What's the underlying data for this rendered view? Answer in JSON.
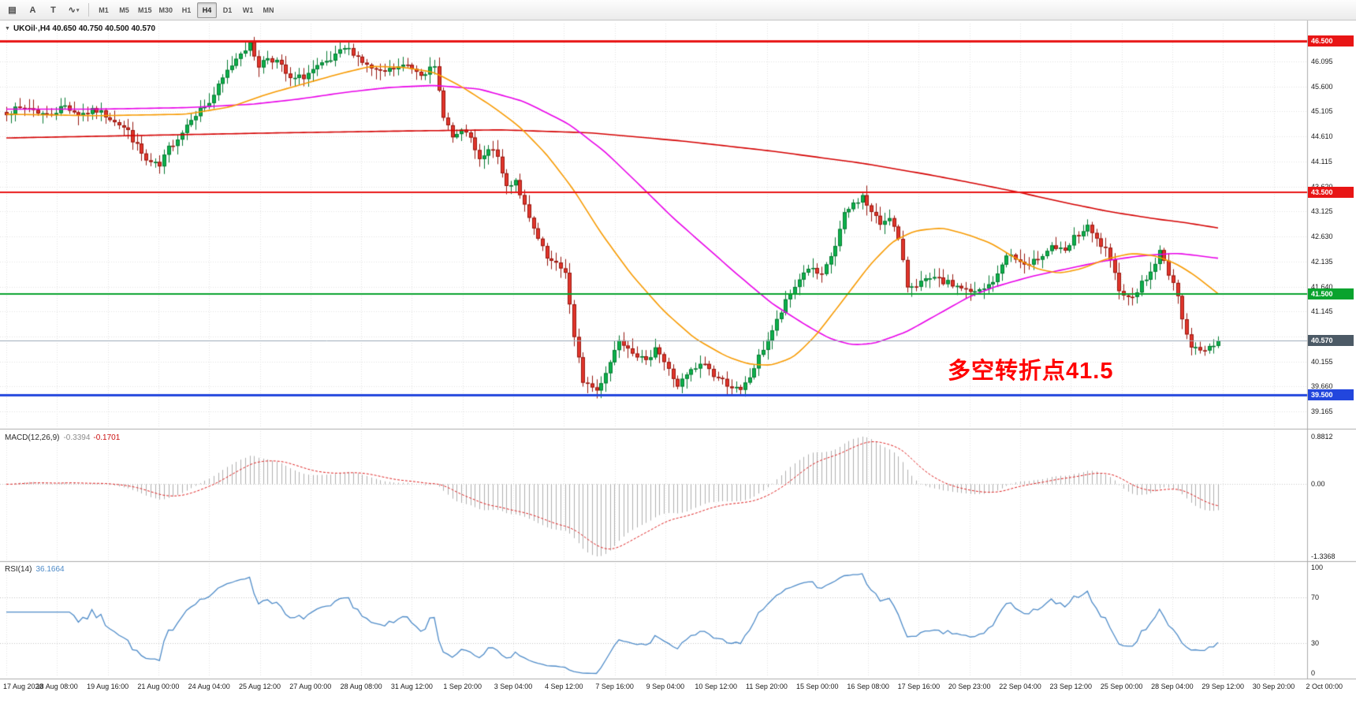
{
  "toolbar": {
    "tools": [
      {
        "name": "charts",
        "glyph": "▤"
      },
      {
        "name": "cursor",
        "glyph": "A"
      },
      {
        "name": "text",
        "glyph": "T"
      },
      {
        "name": "line-studies",
        "glyph": "∿"
      }
    ],
    "timeframes": [
      {
        "label": "M1",
        "active": false
      },
      {
        "label": "M5",
        "active": false
      },
      {
        "label": "M15",
        "active": false
      },
      {
        "label": "M30",
        "active": false
      },
      {
        "label": "H1",
        "active": false
      },
      {
        "label": "H4",
        "active": true
      },
      {
        "label": "D1",
        "active": false
      },
      {
        "label": "W1",
        "active": false
      },
      {
        "label": "MN",
        "active": false
      }
    ]
  },
  "chart_data": {
    "type": "candlestick",
    "symbol": "UKOil",
    "timeframe": "H4",
    "title_line": "UKOil·,H4  40.650 40.750 40.500 40.570",
    "ohlc_display": {
      "open": "40.650",
      "high": "40.750",
      "low": "40.500",
      "close": "40.570"
    },
    "price_axis": {
      "ticks": [
        46.095,
        45.6,
        45.105,
        44.61,
        44.115,
        43.62,
        43.125,
        42.63,
        42.135,
        41.64,
        41.145,
        40.65,
        40.155,
        39.66,
        39.165
      ],
      "levels": [
        {
          "price": 46.5,
          "label": "46.500",
          "color": "#e81515",
          "width": 3
        },
        {
          "price": 43.5,
          "label": "43.500",
          "color": "#e81515",
          "width": 2
        },
        {
          "price": 41.5,
          "label": "41.500",
          "color": "#0aa32e",
          "width": 2
        },
        {
          "price": 39.5,
          "label": "39.500",
          "color": "#2246dd",
          "width": 3
        }
      ],
      "current": {
        "price": 40.57,
        "label": "40.570",
        "line_color": "#9aa8b6",
        "tag_color": "#4c5a66"
      }
    },
    "time_axis": {
      "labels": [
        "17 Aug 2020",
        "18 Aug 08:00",
        "19 Aug 16:00",
        "21 Aug 00:00",
        "24 Aug 04:00",
        "25 Aug 12:00",
        "27 Aug 00:00",
        "28 Aug 08:00",
        "31 Aug 12:00",
        "1 Sep 20:00",
        "3 Sep 04:00",
        "4 Sep 12:00",
        "7 Sep 16:00",
        "9 Sep 04:00",
        "10 Sep 12:00",
        "11 Sep 20:00",
        "15 Sep 00:00",
        "16 Sep 08:00",
        "17 Sep 16:00",
        "20 Sep 23:00",
        "22 Sep 04:00",
        "23 Sep 12:00",
        "25 Sep 00:00",
        "28 Sep 04:00",
        "29 Sep 12:00",
        "30 Sep 20:00",
        "2 Oct 00:00"
      ]
    },
    "candles": {
      "count": 270,
      "up_color": "#0cb14b",
      "up_border": "#067a32",
      "down_color": "#e2352b",
      "down_border": "#96170f",
      "close_path": [
        [
          0,
          45.1
        ],
        [
          5,
          45.18
        ],
        [
          9,
          45.02
        ],
        [
          13,
          45.22
        ],
        [
          16,
          45.05
        ],
        [
          20,
          45.12
        ],
        [
          24,
          44.94
        ],
        [
          27,
          44.7
        ],
        [
          31,
          44.12
        ],
        [
          34,
          44.0
        ],
        [
          36,
          44.38
        ],
        [
          39,
          44.7
        ],
        [
          41,
          45.0
        ],
        [
          45,
          45.28
        ],
        [
          49,
          45.9
        ],
        [
          52,
          46.3
        ],
        [
          54,
          46.42
        ],
        [
          56,
          46.02
        ],
        [
          58,
          46.18
        ],
        [
          60,
          46.1
        ],
        [
          63,
          45.72
        ],
        [
          66,
          45.8
        ],
        [
          68,
          45.92
        ],
        [
          72,
          46.1
        ],
        [
          75,
          46.35
        ],
        [
          77,
          46.28
        ],
        [
          80,
          46.0
        ],
        [
          83,
          45.85
        ],
        [
          86,
          45.95
        ],
        [
          89,
          46.02
        ],
        [
          92,
          45.88
        ],
        [
          95,
          45.95
        ],
        [
          97,
          45.05
        ],
        [
          99,
          44.58
        ],
        [
          102,
          44.72
        ],
        [
          105,
          44.12
        ],
        [
          108,
          44.4
        ],
        [
          111,
          43.62
        ],
        [
          113,
          43.76
        ],
        [
          116,
          42.95
        ],
        [
          120,
          42.18
        ],
        [
          122,
          42.05
        ],
        [
          124,
          41.95
        ],
        [
          126,
          40.6
        ],
        [
          128,
          39.78
        ],
        [
          131,
          39.58
        ],
        [
          134,
          40.15
        ],
        [
          136,
          40.62
        ],
        [
          139,
          40.38
        ],
        [
          142,
          40.12
        ],
        [
          144,
          40.48
        ],
        [
          147,
          39.98
        ],
        [
          149,
          39.68
        ],
        [
          152,
          39.96
        ],
        [
          155,
          40.12
        ],
        [
          157,
          39.88
        ],
        [
          160,
          39.72
        ],
        [
          163,
          39.55
        ],
        [
          165,
          39.85
        ],
        [
          168,
          40.42
        ],
        [
          171,
          40.95
        ],
        [
          173,
          41.32
        ],
        [
          176,
          41.8
        ],
        [
          178,
          42.02
        ],
        [
          181,
          41.82
        ],
        [
          184,
          42.45
        ],
        [
          186,
          43.05
        ],
        [
          188,
          43.28
        ],
        [
          190,
          43.42
        ],
        [
          192,
          43.1
        ],
        [
          194,
          42.88
        ],
        [
          196,
          43.05
        ],
        [
          198,
          42.55
        ],
        [
          200,
          41.65
        ],
        [
          203,
          41.72
        ],
        [
          206,
          41.78
        ],
        [
          209,
          41.7
        ],
        [
          212,
          41.62
        ],
        [
          214,
          41.5
        ],
        [
          217,
          41.58
        ],
        [
          220,
          41.85
        ],
        [
          222,
          42.3
        ],
        [
          225,
          42.12
        ],
        [
          227,
          42.02
        ],
        [
          229,
          42.22
        ],
        [
          232,
          42.45
        ],
        [
          235,
          42.3
        ],
        [
          237,
          42.6
        ],
        [
          240,
          42.8
        ],
        [
          242,
          42.55
        ],
        [
          244,
          42.35
        ],
        [
          247,
          41.62
        ],
        [
          249,
          41.4
        ],
        [
          251,
          41.58
        ],
        [
          254,
          41.92
        ],
        [
          256,
          42.32
        ],
        [
          259,
          41.72
        ],
        [
          261,
          41.05
        ],
        [
          263,
          40.45
        ],
        [
          265,
          40.35
        ],
        [
          268,
          40.52
        ],
        [
          269,
          40.57
        ]
      ]
    },
    "moving_averages": [
      {
        "name": "ma-slow",
        "color": "#d40000",
        "path": [
          [
            0,
            44.58
          ],
          [
            30,
            44.63
          ],
          [
            60,
            44.68
          ],
          [
            90,
            44.72
          ],
          [
            110,
            44.74
          ],
          [
            130,
            44.68
          ],
          [
            150,
            44.52
          ],
          [
            170,
            44.32
          ],
          [
            190,
            44.08
          ],
          [
            205,
            43.85
          ],
          [
            215,
            43.68
          ],
          [
            225,
            43.5
          ],
          [
            235,
            43.3
          ],
          [
            245,
            43.12
          ],
          [
            255,
            42.98
          ],
          [
            262,
            42.9
          ],
          [
            269,
            42.8
          ]
        ]
      },
      {
        "name": "ma-medium",
        "color": "#e800e8",
        "path": [
          [
            0,
            45.15
          ],
          [
            20,
            45.15
          ],
          [
            40,
            45.18
          ],
          [
            55,
            45.25
          ],
          [
            65,
            45.35
          ],
          [
            75,
            45.48
          ],
          [
            85,
            45.58
          ],
          [
            95,
            45.62
          ],
          [
            105,
            45.55
          ],
          [
            115,
            45.3
          ],
          [
            125,
            44.85
          ],
          [
            133,
            44.3
          ],
          [
            140,
            43.7
          ],
          [
            148,
            43.0
          ],
          [
            155,
            42.45
          ],
          [
            162,
            41.9
          ],
          [
            170,
            41.3
          ],
          [
            178,
            40.85
          ],
          [
            183,
            40.6
          ],
          [
            188,
            40.48
          ],
          [
            193,
            40.52
          ],
          [
            200,
            40.75
          ],
          [
            207,
            41.1
          ],
          [
            214,
            41.45
          ],
          [
            220,
            41.65
          ],
          [
            228,
            41.85
          ],
          [
            236,
            42.0
          ],
          [
            244,
            42.15
          ],
          [
            252,
            42.25
          ],
          [
            260,
            42.3
          ],
          [
            269,
            42.2
          ]
        ]
      },
      {
        "name": "ma-fast",
        "color": "#f79a00",
        "path": [
          [
            0,
            45.05
          ],
          [
            20,
            45.02
          ],
          [
            40,
            45.05
          ],
          [
            50,
            45.2
          ],
          [
            58,
            45.45
          ],
          [
            66,
            45.65
          ],
          [
            74,
            45.85
          ],
          [
            81,
            46.0
          ],
          [
            88,
            45.98
          ],
          [
            95,
            45.88
          ],
          [
            101,
            45.6
          ],
          [
            108,
            45.2
          ],
          [
            114,
            44.8
          ],
          [
            120,
            44.25
          ],
          [
            126,
            43.55
          ],
          [
            132,
            42.7
          ],
          [
            139,
            41.85
          ],
          [
            146,
            41.15
          ],
          [
            153,
            40.6
          ],
          [
            160,
            40.25
          ],
          [
            165,
            40.1
          ],
          [
            170,
            40.08
          ],
          [
            175,
            40.25
          ],
          [
            180,
            40.7
          ],
          [
            186,
            41.4
          ],
          [
            192,
            42.1
          ],
          [
            197,
            42.55
          ],
          [
            202,
            42.75
          ],
          [
            208,
            42.8
          ],
          [
            214,
            42.65
          ],
          [
            219,
            42.48
          ],
          [
            224,
            42.2
          ],
          [
            229,
            41.98
          ],
          [
            234,
            41.9
          ],
          [
            239,
            42.0
          ],
          [
            244,
            42.18
          ],
          [
            250,
            42.3
          ],
          [
            255,
            42.25
          ],
          [
            260,
            42.08
          ],
          [
            264,
            41.85
          ],
          [
            269,
            41.5
          ]
        ]
      }
    ],
    "macd": {
      "label": "MACD(12,26,9)",
      "main_value": "-0.3394",
      "signal_value": "-0.1701",
      "fast": 12,
      "slow": 26,
      "signal": 9,
      "axis_max": "0.8812",
      "axis_zero": "0.00",
      "axis_min": "-1.3368",
      "max": 0.8812,
      "min": -1.3368,
      "hist_color": "#afafaf",
      "signal_color": "#dd2020"
    },
    "rsi": {
      "label": "RSI(14)",
      "value": "36.1664",
      "period": 14,
      "axis": [
        "100",
        "70",
        "30",
        "0"
      ],
      "levels": [
        70,
        30
      ],
      "color": "#4e8bc8"
    },
    "annotation": {
      "text": "多空转折点41.5",
      "color": "#ff0000"
    }
  }
}
